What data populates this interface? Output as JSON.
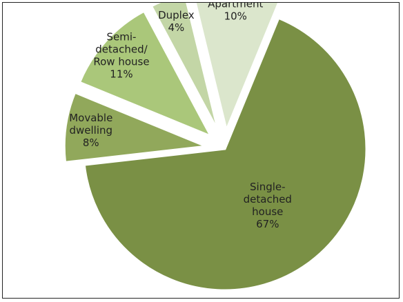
{
  "chart_data": {
    "type": "pie",
    "exploded": true,
    "title": "",
    "legend": "none",
    "slices": [
      {
        "name": "Single-detached house",
        "value": 67,
        "label_lines": [
          "Single-",
          "detached",
          "house",
          "67%"
        ],
        "color": "#7a9045"
      },
      {
        "name": "Movable dwelling",
        "value": 8,
        "label_lines": [
          "Movable",
          "dwelling",
          "8%"
        ],
        "color": "#91a85b"
      },
      {
        "name": "Semi-detached/ Row house",
        "value": 11,
        "label_lines": [
          "Semi-",
          "detached/",
          "Row house",
          "11%"
        ],
        "color": "#aac77a"
      },
      {
        "name": "Duplex",
        "value": 4,
        "label_lines": [
          "Duplex",
          "4%"
        ],
        "color": "#c3d6a6"
      },
      {
        "name": "Apartment",
        "value": 10,
        "label_lines": [
          "Apartment",
          "10%"
        ],
        "color": "#dbe6cc"
      }
    ]
  }
}
